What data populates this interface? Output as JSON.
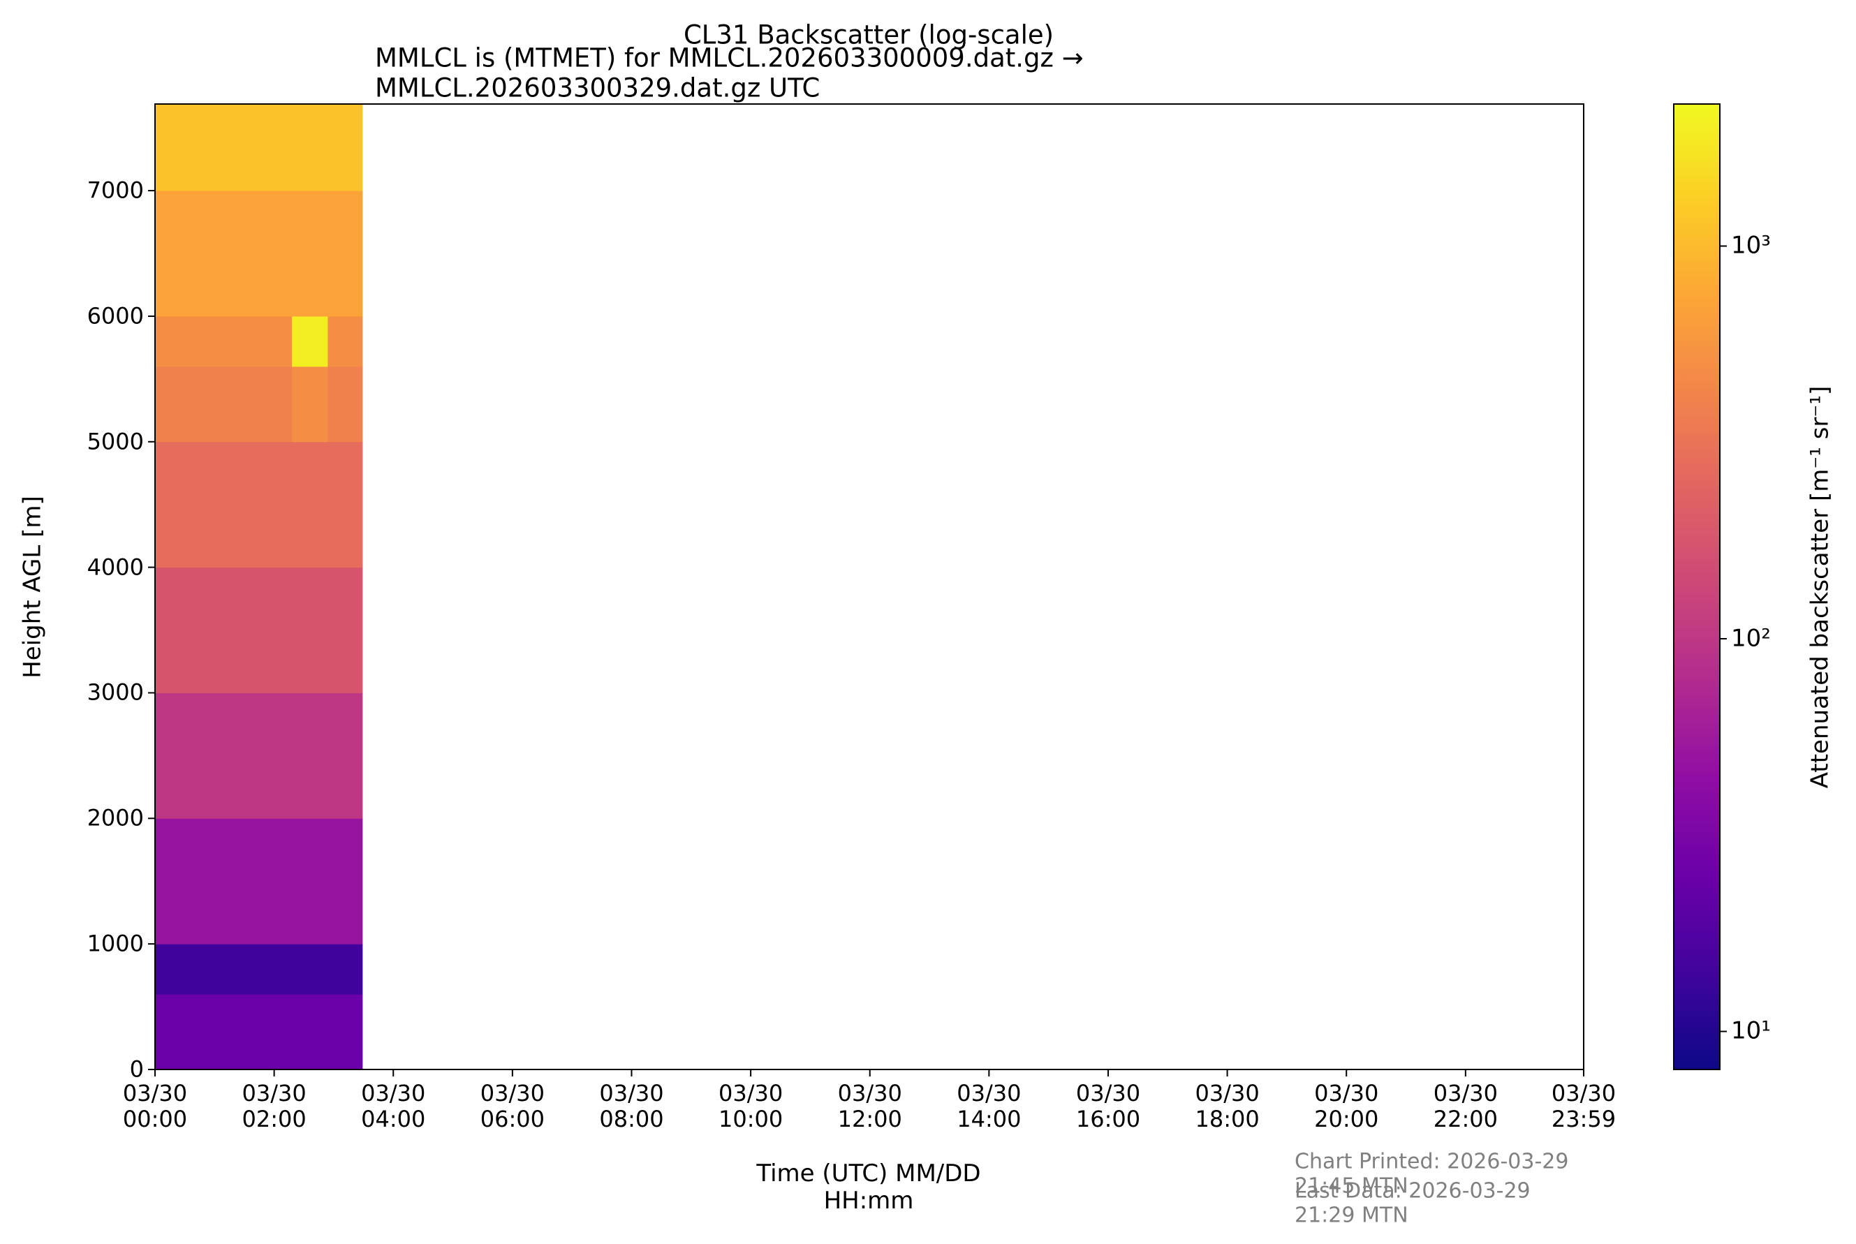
{
  "chart_data": {
    "type": "heatmap",
    "title": "CL31 Backscatter (log-scale)",
    "subtitle": "MMLCL is (MTMET) for MMLCL.202603300009.dat.gz → MMLCL.202603300329.dat.gz UTC",
    "x_label": "Time (UTC) MM/DD\nHH:mm",
    "y_label": "Height AGL [m]",
    "colorbar_label": "Attenuated backscatter [m⁻¹ sr⁻¹]",
    "colormap": "plasma",
    "color_scale": "log",
    "clim": [
      8,
      2300
    ],
    "cticks": [
      {
        "value": 10,
        "label": "10¹"
      },
      {
        "value": 100,
        "label": "10²"
      },
      {
        "value": 1000,
        "label": "10³"
      }
    ],
    "x_bins": [
      0,
      2.3,
      2.9,
      3.48
    ],
    "y_bins": [
      0,
      600,
      1000,
      2000,
      3000,
      4000,
      5000,
      5600,
      6000,
      7000,
      7690
    ],
    "values": [
      [
        25,
        25,
        25
      ],
      [
        14,
        14,
        14
      ],
      [
        50,
        50,
        50
      ],
      [
        100,
        100,
        100
      ],
      [
        180,
        180,
        180
      ],
      [
        280,
        280,
        280
      ],
      [
        400,
        500,
        400
      ],
      [
        500,
        2000,
        500
      ],
      [
        700,
        700,
        700
      ],
      [
        1100,
        1100,
        1100
      ]
    ],
    "xlim": [
      0,
      23.983
    ],
    "xticks": [
      {
        "value": 0,
        "label": "03/30\n00:00"
      },
      {
        "value": 2,
        "label": "03/30\n02:00"
      },
      {
        "value": 4,
        "label": "03/30\n04:00"
      },
      {
        "value": 6,
        "label": "03/30\n06:00"
      },
      {
        "value": 8,
        "label": "03/30\n08:00"
      },
      {
        "value": 10,
        "label": "03/30\n10:00"
      },
      {
        "value": 12,
        "label": "03/30\n12:00"
      },
      {
        "value": 14,
        "label": "03/30\n14:00"
      },
      {
        "value": 16,
        "label": "03/30\n16:00"
      },
      {
        "value": 18,
        "label": "03/30\n18:00"
      },
      {
        "value": 20,
        "label": "03/30\n20:00"
      },
      {
        "value": 22,
        "label": "03/30\n22:00"
      },
      {
        "value": 23.983,
        "label": "03/30\n23:59"
      }
    ],
    "ylim": [
      0,
      7690
    ],
    "yticks": [
      0,
      1000,
      2000,
      3000,
      4000,
      5000,
      6000,
      7000
    ],
    "annotations": [
      "Chart Printed: 2026-03-29 21:45 MTN",
      "Last Data: 2026-03-29 21:29 MTN"
    ]
  }
}
